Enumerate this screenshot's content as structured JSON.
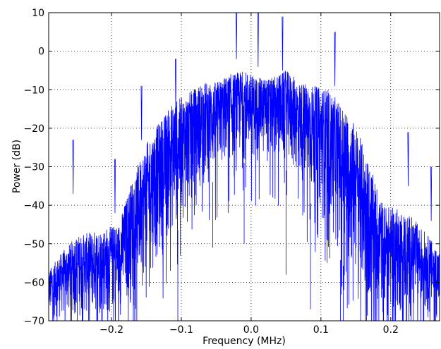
{
  "chart_data": {
    "type": "line",
    "title": "",
    "xlabel": "Frequency (MHz)",
    "ylabel": "Power (dB)",
    "xlim": [
      -0.29,
      0.27
    ],
    "ylim": [
      -70,
      10
    ],
    "grid": true,
    "x_ticks": [
      {
        "value": -0.2,
        "label": "−0.2"
      },
      {
        "value": -0.1,
        "label": "−0.1"
      },
      {
        "value": 0.0,
        "label": "0.0"
      },
      {
        "value": 0.1,
        "label": "0.1"
      },
      {
        "value": 0.2,
        "label": "0.2"
      }
    ],
    "y_ticks": [
      {
        "value": 10,
        "label": "10"
      },
      {
        "value": 0,
        "label": "0"
      },
      {
        "value": -10,
        "label": "−10"
      },
      {
        "value": -20,
        "label": "−20"
      },
      {
        "value": -30,
        "label": "−30"
      },
      {
        "value": -40,
        "label": "−40"
      },
      {
        "value": -50,
        "label": "−50"
      },
      {
        "value": -60,
        "label": "−60"
      },
      {
        "value": -70,
        "label": "−70"
      }
    ],
    "series": [
      {
        "color": "#0000ff",
        "envelope": {
          "x": [
            -0.29,
            -0.27,
            -0.25,
            -0.23,
            -0.21,
            -0.19,
            -0.17,
            -0.15,
            -0.13,
            -0.11,
            -0.09,
            -0.07,
            -0.05,
            -0.03,
            -0.01,
            0.0,
            0.01,
            0.03,
            0.05,
            0.07,
            0.09,
            0.11,
            0.13,
            0.15,
            0.17,
            0.19,
            0.21,
            0.23,
            0.25,
            0.27
          ],
          "peak": [
            -57,
            -52,
            -48,
            -47,
            -46,
            -45,
            -33,
            -24,
            -18,
            -13,
            -11,
            -8,
            -8,
            -6,
            -5,
            -6,
            -7,
            -7,
            -5,
            -8,
            -9,
            -10,
            -14,
            -19,
            -30,
            -40,
            -41,
            -43,
            -47,
            -52
          ],
          "trough": [
            -70,
            -70,
            -70,
            -70,
            -70,
            -70,
            -66,
            -60,
            -55,
            -48,
            -42,
            -37,
            -33,
            -30,
            -29,
            -29,
            -29,
            -30,
            -31,
            -35,
            -41,
            -47,
            -55,
            -62,
            -70,
            -70,
            -70,
            -70,
            -70,
            -70
          ]
        },
        "spikes": [
          {
            "x": -0.255,
            "y": -37
          },
          {
            "x": -0.195,
            "y": -42
          },
          {
            "x": -0.157,
            "y": -23
          },
          {
            "x": -0.108,
            "y": -16
          },
          {
            "x": -0.021,
            "y": -2
          },
          {
            "x": 0.01,
            "y": -4
          },
          {
            "x": 0.045,
            "y": -5
          },
          {
            "x": 0.12,
            "y": -9
          },
          {
            "x": 0.225,
            "y": -35
          },
          {
            "x": 0.258,
            "y": -44
          }
        ],
        "dips": [
          {
            "x": -0.105,
            "y": -70
          },
          {
            "x": -0.055,
            "y": -51
          },
          {
            "x": -0.01,
            "y": -50
          },
          {
            "x": 0.05,
            "y": -58
          },
          {
            "x": 0.085,
            "y": -67
          },
          {
            "x": 0.128,
            "y": -70
          },
          {
            "x": 0.132,
            "y": -70
          }
        ]
      }
    ]
  }
}
